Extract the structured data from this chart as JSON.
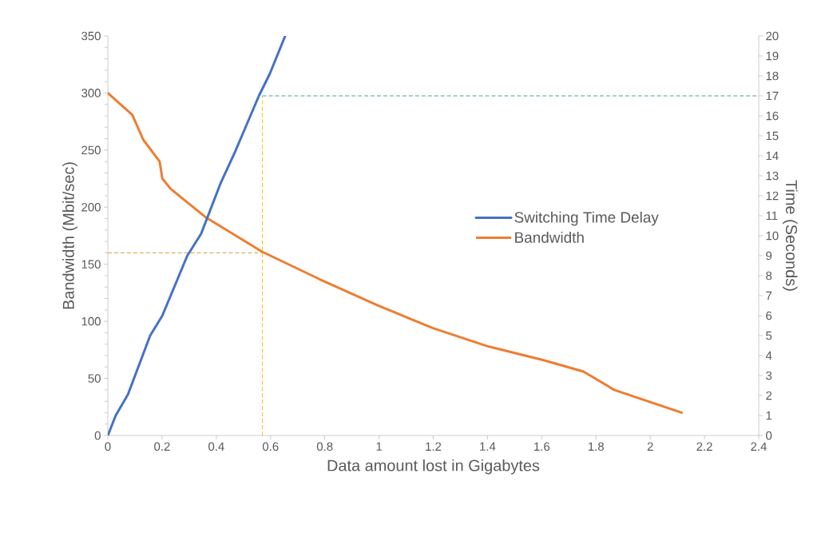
{
  "chart_data": {
    "type": "line",
    "xlabel": "Data amount  lost in Gigabytes",
    "ylabel": "Bandwidth (Mbit/sec)",
    "y2label": "Time (Seconds)",
    "series": [
      {
        "name": "Switching Time Delay",
        "color": "#4472c4",
        "axis": "y2",
        "x": [
          0,
          0.029,
          0.074,
          0.156,
          0.201,
          0.293,
          0.344,
          0.415,
          0.466,
          0.557,
          0.597,
          0.654
        ],
        "values": [
          0,
          1.0,
          2.05,
          5.0,
          6.0,
          9.0,
          10.1,
          12.6,
          14.1,
          17.0,
          18.1,
          20.0
        ]
      },
      {
        "name": "Bandwidth",
        "color": "#ed7d31",
        "x": [
          0,
          0.09,
          0.131,
          0.191,
          0.201,
          0.232,
          0.359,
          0.569,
          0.78,
          0.995,
          1.199,
          1.403,
          1.607,
          1.754,
          1.867,
          2.116
        ],
        "values": [
          300,
          281,
          259,
          240,
          225,
          216,
          191.5,
          161,
          137,
          114,
          94,
          78,
          66,
          56,
          40,
          20
        ]
      }
    ],
    "xlim": [
      0,
      2.4
    ],
    "xticks": [
      0,
      0.2,
      0.4,
      0.6,
      0.8,
      1,
      1.2,
      1.4,
      1.6,
      1.8,
      2,
      2.2,
      2.4
    ],
    "ylim": [
      0,
      350
    ],
    "yticks": [
      0,
      50,
      100,
      150,
      200,
      250,
      300,
      350
    ],
    "y2lim": [
      0,
      20
    ],
    "y2ticks": [
      0,
      1,
      2,
      3,
      4,
      5,
      6,
      7,
      8,
      9,
      10,
      11,
      12,
      13,
      14,
      15,
      16,
      17,
      18,
      19,
      20
    ],
    "ref_lines": [
      {
        "axis": "x",
        "value": 0.57,
        "color": "#ffc000",
        "line_style": "dashed"
      },
      {
        "axis": "y",
        "value": 160,
        "color": "#d9a03a",
        "line_style": "dashed"
      },
      {
        "axis": "y2",
        "value": 17,
        "color": "#4f9d9d",
        "line_style": "dashed"
      }
    ],
    "legend": "right",
    "grid": false,
    "line_style": "solid",
    "marker": "none"
  }
}
